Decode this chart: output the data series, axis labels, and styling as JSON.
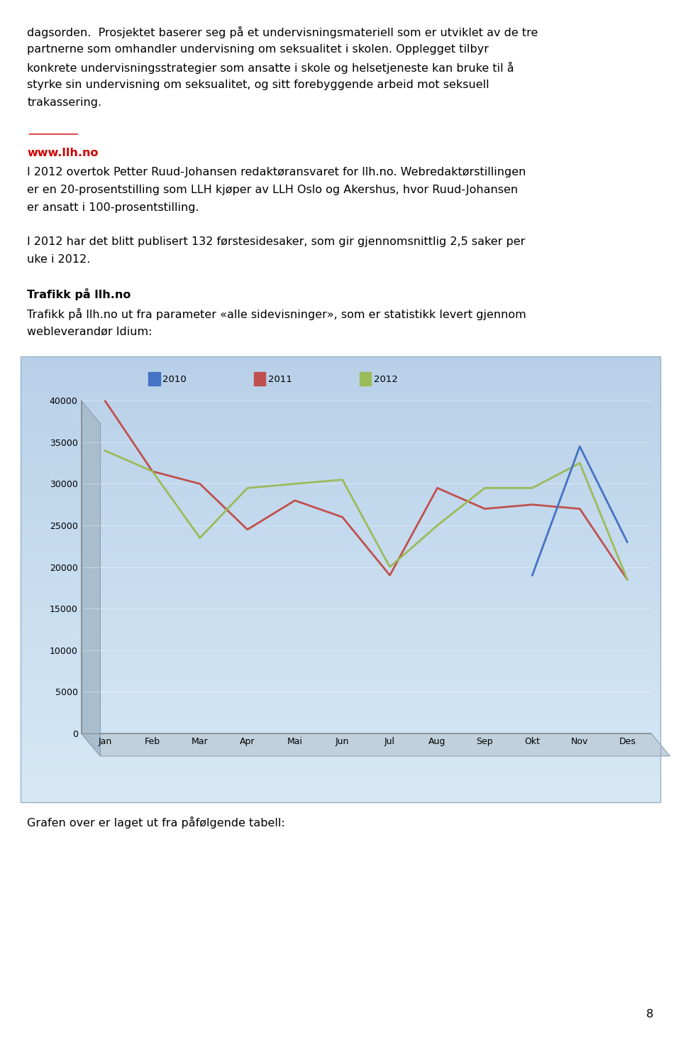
{
  "page_background": "#ffffff",
  "text_color": "#000000",
  "link_text": "www.llh.no",
  "link_color": "#cc0000",
  "months": [
    "Jan",
    "Feb",
    "Mar",
    "Apr",
    "Mai",
    "Jun",
    "Jul",
    "Aug",
    "Sep",
    "Okt",
    "Nov",
    "Des"
  ],
  "series": {
    "2010": {
      "color": "#4472c4",
      "values": [
        null,
        null,
        null,
        null,
        null,
        null,
        null,
        null,
        null,
        19000,
        34500,
        23000
      ]
    },
    "2011": {
      "color": "#c0504d",
      "values": [
        40000,
        31500,
        30000,
        24500,
        28000,
        26000,
        19000,
        29500,
        27000,
        27500,
        27000,
        18500
      ]
    },
    "2012": {
      "color": "#9bbb59",
      "values": [
        34000,
        31500,
        23500,
        29500,
        30000,
        30500,
        20000,
        25000,
        29500,
        29500,
        32500,
        18500
      ]
    }
  },
  "ylim": [
    0,
    40000
  ],
  "yticks": [
    0,
    5000,
    10000,
    15000,
    20000,
    25000,
    30000,
    35000,
    40000
  ],
  "footer_text": "Grafen over er laget ut fra påfølgende tabell:",
  "page_number": "8",
  "lines_top": [
    "dagsorden.  Prosjektet baserer seg på et undervisningsmateriell som er utviklet av de tre",
    "partnerne som omhandler undervisning om seksualitet i skolen. Opplegget tilbyr",
    "konkrete undervisningsstrategier som ansatte i skole og helsetjeneste kan bruke til å",
    "styrke sin undervisning om seksualitet, og sitt forebyggende arbeid mot seksuell",
    "trakassering."
  ],
  "lines_p1": [
    "I 2012 overtok Petter Ruud-Johansen redaktøransvaret for llh.no. Webredaktørstillingen",
    "er en 20-prosentstilling som LLH kjøper av LLH Oslo og Akershus, hvor Ruud-Johansen",
    "er ansatt i 100-prosentstilling."
  ],
  "lines_p2": [
    "I 2012 har det blitt publisert 132 førstesidesaker, som gir gjennomsnittlig 2,5 saker per",
    "uke i 2012."
  ],
  "heading2": "Trafikk på llh.no",
  "lines_p3": [
    "Trafikk på llh.no ut fra parameter «alle sidevisninger», som er statistikk levert gjennom",
    "webleverandør Idium:"
  ]
}
